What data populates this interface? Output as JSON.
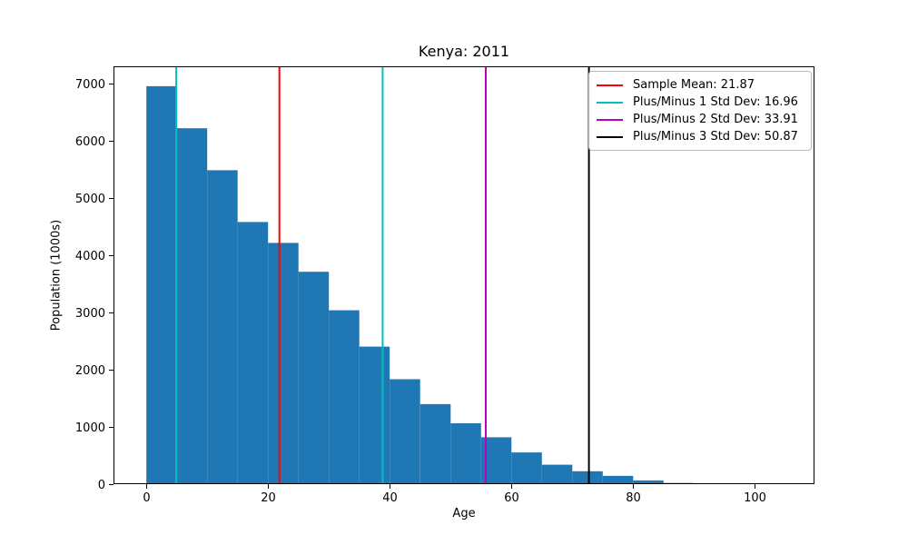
{
  "figure": {
    "title": "Kenya: 2011",
    "xlabel": "Age",
    "ylabel": "Population (1000s)"
  },
  "chart_data": {
    "type": "bar",
    "subtype": "histogram",
    "title": "Kenya: 2011",
    "xlabel": "Age",
    "ylabel": "Population (1000s)",
    "bar_color": "#1f77b4",
    "bin_start": 0,
    "bin_width": 5,
    "values": [
      6960,
      6225,
      5490,
      4585,
      4220,
      3715,
      3040,
      2405,
      1835,
      1400,
      1065,
      820,
      555,
      340,
      225,
      145,
      65,
      20,
      0,
      0,
      0
    ],
    "xlim": [
      -5.4,
      109.8
    ],
    "ylim": [
      0,
      7308
    ],
    "xticks": [
      0,
      20,
      40,
      60,
      80,
      100
    ],
    "yticks": [
      0,
      1000,
      2000,
      3000,
      4000,
      5000,
      6000,
      7000
    ],
    "grid": false,
    "legend_position": "upper right",
    "stats": {
      "sample_mean": 21.87,
      "std_dev_1": 16.96,
      "std_dev_2": 33.91,
      "std_dev_3": 50.87
    },
    "vlines": [
      {
        "x": 21.87,
        "color": "#ff0000",
        "name": "sample-mean-line"
      },
      {
        "x": 4.91,
        "color": "#00bfbf",
        "name": "minus-1-std-line"
      },
      {
        "x": 38.83,
        "color": "#00bfbf",
        "name": "plus-1-std-line"
      },
      {
        "x": 55.78,
        "color": "#bf00bf",
        "name": "plus-2-std-line"
      },
      {
        "x": 72.74,
        "color": "#000000",
        "name": "plus-3-std-line"
      }
    ],
    "legend": [
      {
        "label": "Sample Mean: 21.87",
        "color": "#ff0000"
      },
      {
        "label": "Plus/Minus 1 Std Dev: 16.96",
        "color": "#00bfbf"
      },
      {
        "label": "Plus/Minus 2 Std Dev: 33.91",
        "color": "#bf00bf"
      },
      {
        "label": "Plus/Minus 3 Std Dev: 50.87",
        "color": "#000000"
      }
    ]
  }
}
